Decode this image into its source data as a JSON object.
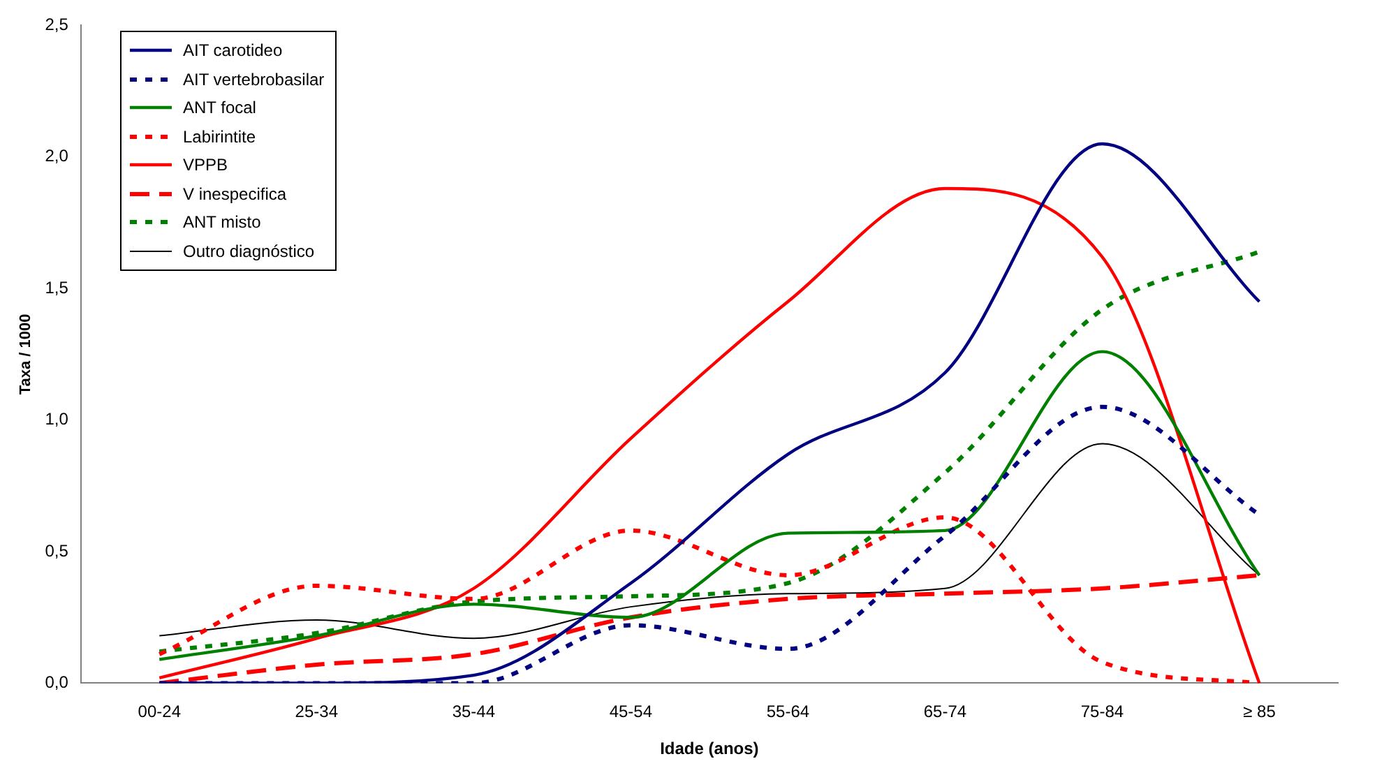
{
  "chart_data": {
    "type": "line",
    "xlabel": "Idade (anos)",
    "ylabel": "Taxa / 1000",
    "categories": [
      "00-24",
      "25-34",
      "35-44",
      "45-54",
      "55-64",
      "65-74",
      "75-84",
      "≥ 85"
    ],
    "ylim": [
      0,
      2.5
    ],
    "yticks": [
      {
        "value": 0,
        "label": "0,0"
      },
      {
        "value": 0.5,
        "label": "0,5"
      },
      {
        "value": 1,
        "label": "1,0"
      },
      {
        "value": 1.5,
        "label": "1,5"
      },
      {
        "value": 2,
        "label": "2,0"
      },
      {
        "value": 2.5,
        "label": "2,5"
      }
    ],
    "grid": false,
    "legend": "top left",
    "marker": "none",
    "series": [
      {
        "name": "AIT carotideo",
        "color": "#000080",
        "line_style": "solid",
        "values": [
          0,
          0,
          0.03,
          0.38,
          0.87,
          1.18,
          2.05,
          1.45
        ]
      },
      {
        "name": "AIT vertebrobasilar",
        "color": "#000080",
        "line_style": "dotted",
        "values": [
          0,
          0,
          0,
          0.22,
          0.13,
          0.56,
          1.05,
          0.64
        ]
      },
      {
        "name": "ANT focal",
        "color": "#008000",
        "line_style": "solid",
        "values": [
          0.09,
          0.18,
          0.3,
          0.25,
          0.57,
          0.58,
          1.26,
          0.41
        ]
      },
      {
        "name": "Labirintite",
        "color": "#ff0000",
        "line_style": "dotted",
        "values": [
          0.11,
          0.37,
          0.32,
          0.58,
          0.41,
          0.63,
          0.08,
          0
        ]
      },
      {
        "name": "VPPB",
        "color": "#ff0000",
        "line_style": "solid",
        "values": [
          0.02,
          0.17,
          0.36,
          0.93,
          1.45,
          1.88,
          1.62,
          0
        ]
      },
      {
        "name": "V inespecifica",
        "color": "#ff0000",
        "line_style": "dashed",
        "values": [
          0,
          0.07,
          0.11,
          0.25,
          0.32,
          0.34,
          0.36,
          0.41
        ]
      },
      {
        "name": "ANT misto",
        "color": "#008000",
        "line_style": "dotted",
        "values": [
          0.12,
          0.19,
          0.31,
          0.33,
          0.38,
          0.8,
          1.42,
          1.64
        ]
      },
      {
        "name": "Outro diagnóstico",
        "color": "#000000",
        "line_style": "solid",
        "values": [
          0.18,
          0.24,
          0.17,
          0.29,
          0.34,
          0.36,
          0.91,
          0.41
        ]
      }
    ]
  }
}
